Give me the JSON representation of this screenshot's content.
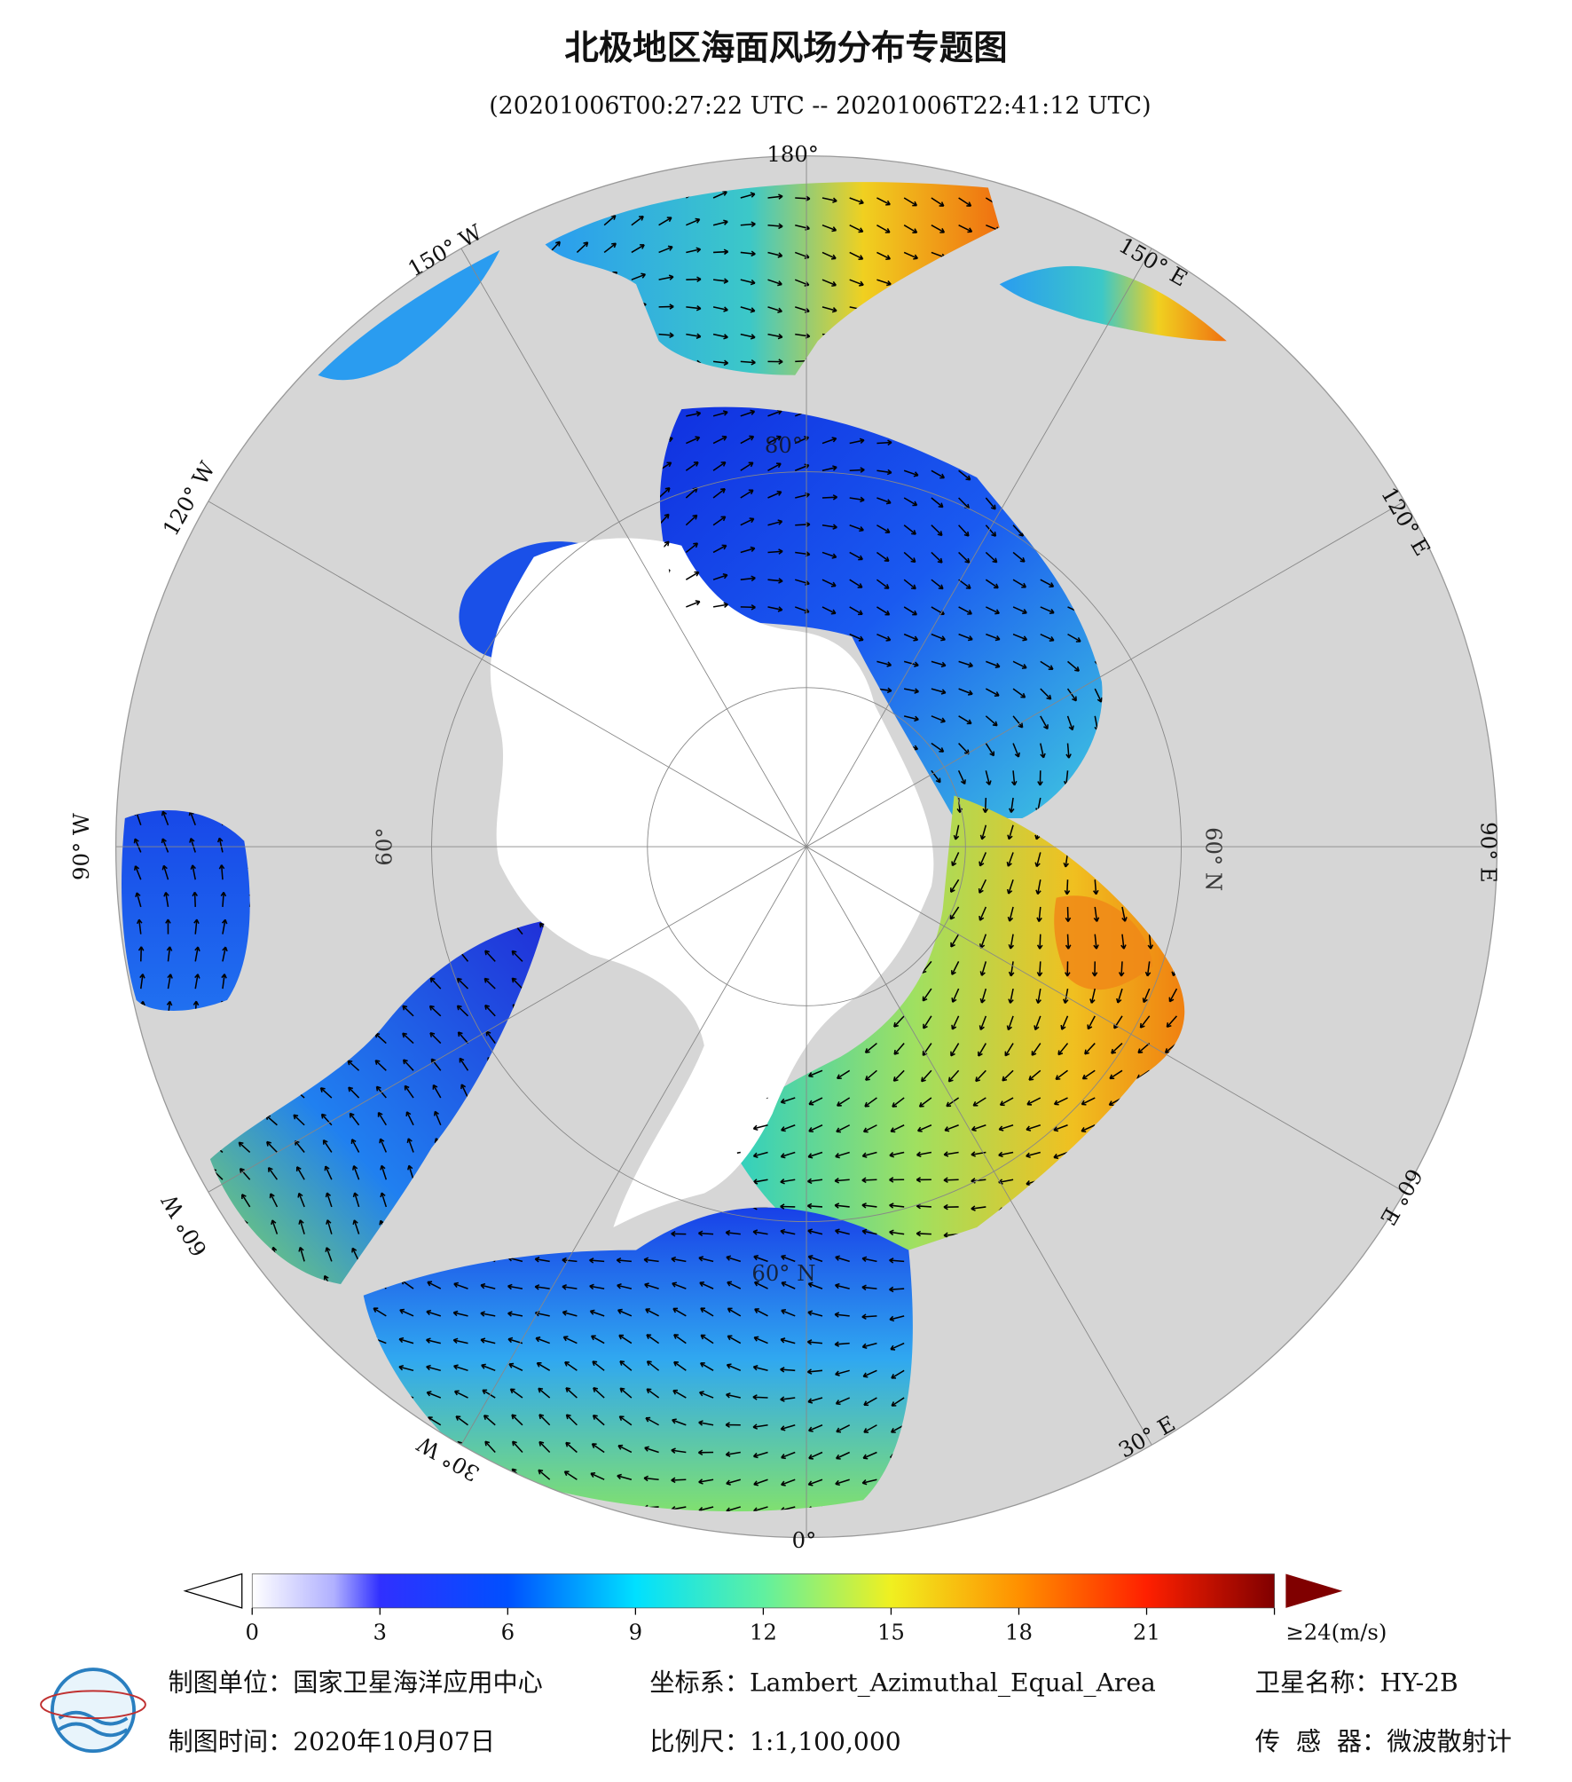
{
  "header": {
    "title": "北极地区海面风场分布专题图",
    "subtitle": "(20201006T00:27:22 UTC -- 20201006T22:41:12 UTC)"
  },
  "map": {
    "longitude_labels": [
      "180°",
      "150° W",
      "150° E",
      "120° W",
      "120° E",
      "90° W",
      "90° E",
      "60° W",
      "60° E",
      "30° W",
      "30° E",
      "0°"
    ],
    "latitude_labels": [
      "80°",
      "60° N",
      "60° N",
      "60°"
    ]
  },
  "colorbar": {
    "lim": [
      0,
      24
    ],
    "ticks": [
      0,
      3,
      6,
      9,
      12,
      15,
      18,
      21,
      {
        "value": 24,
        "label": "≥24(m/s)"
      }
    ]
  },
  "footer": {
    "unit": "制图单位：国家卫星海洋应用中心",
    "coordinate_system": "坐标系：Lambert_Azimuthal_Equal_Area",
    "satellite": "卫星名称：HY-2B",
    "date": "制图时间：2020年10月07日",
    "scale": "比例尺：1:1,100,000",
    "sensor": "传  感  器：微波散射计"
  }
}
